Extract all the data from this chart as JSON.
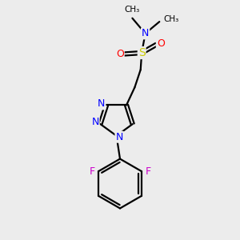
{
  "background_color": "#ececec",
  "atom_colors": {
    "C": "#000000",
    "N": "#0000ff",
    "S": "#cccc00",
    "O": "#ff0000",
    "F": "#cc00cc",
    "H": "#000000"
  },
  "figsize": [
    3.0,
    3.0
  ],
  "dpi": 100,
  "bond_lw": 1.6,
  "font_size": 9
}
